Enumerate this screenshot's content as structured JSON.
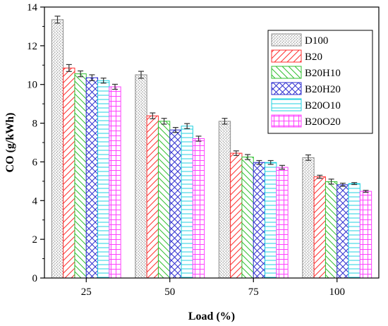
{
  "chart_data": {
    "type": "bar",
    "title": "",
    "xlabel": "Load (%)",
    "ylabel": "CO (g/kWh)",
    "categories": [
      "25",
      "50",
      "75",
      "100"
    ],
    "ylim": [
      0,
      14
    ],
    "yticks": [
      "0",
      "2",
      "4",
      "6",
      "8",
      "10",
      "12",
      "14"
    ],
    "legend_position": "top-right",
    "error_bars": true,
    "series": [
      {
        "name": "D100",
        "values": [
          13.35,
          10.5,
          8.1,
          6.22
        ],
        "errors": [
          0.18,
          0.18,
          0.15,
          0.14
        ],
        "color": "#8c8c8c",
        "pattern": "dots"
      },
      {
        "name": "B20",
        "values": [
          10.85,
          8.38,
          6.45,
          5.23
        ],
        "errors": [
          0.18,
          0.15,
          0.12,
          0.08
        ],
        "color": "#ff3030",
        "pattern": "diag-right"
      },
      {
        "name": "B20H10",
        "values": [
          10.55,
          8.1,
          6.25,
          4.98
        ],
        "errors": [
          0.15,
          0.15,
          0.13,
          0.13
        ],
        "color": "#30c030",
        "pattern": "diag-left"
      },
      {
        "name": "B20H20",
        "values": [
          10.35,
          7.65,
          5.97,
          4.82
        ],
        "errors": [
          0.15,
          0.13,
          0.1,
          0.08
        ],
        "color": "#3030d0",
        "pattern": "cross"
      },
      {
        "name": "B20O10",
        "values": [
          10.2,
          7.85,
          5.97,
          4.88
        ],
        "errors": [
          0.13,
          0.13,
          0.1,
          0.05
        ],
        "color": "#20d0e0",
        "pattern": "horizontal"
      },
      {
        "name": "B20O20",
        "values": [
          9.88,
          7.2,
          5.72,
          4.48
        ],
        "errors": [
          0.13,
          0.13,
          0.1,
          0.05
        ],
        "color": "#ff40ff",
        "pattern": "grid"
      }
    ]
  }
}
